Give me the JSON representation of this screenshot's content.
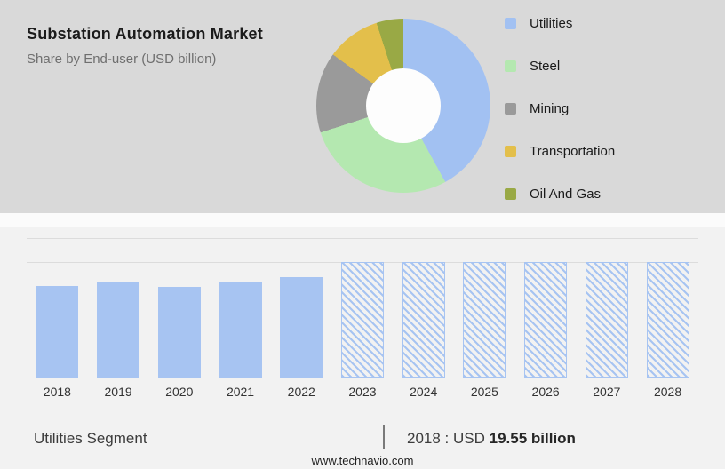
{
  "header": {
    "title": "Substation Automation Market",
    "subtitle": "Share by End-user (USD billion)"
  },
  "chart_data": [
    {
      "type": "pie",
      "title": "Substation Automation Market",
      "subtitle": "Share by End-user (USD billion)",
      "labels": [
        "Utilities",
        "Steel",
        "Mining",
        "Transportation",
        "Oil And Gas"
      ],
      "values_pct": [
        42,
        28,
        15,
        10,
        5
      ],
      "colors": [
        "#a2c1f2",
        "#b4e8b0",
        "#9a9a9a",
        "#e3bf4b",
        "#99a945"
      ],
      "donut_hole_ratio": 0.43,
      "legend_position": "right",
      "start_angle_deg": 0,
      "direction": "clockwise"
    },
    {
      "type": "bar",
      "categories": [
        "2018",
        "2019",
        "2020",
        "2021",
        "2022",
        "2023",
        "2024",
        "2025",
        "2026",
        "2027",
        "2028"
      ],
      "values_usd_billion": [
        19.55,
        20.5,
        19.4,
        20.3,
        21.4,
        null,
        null,
        null,
        null,
        null,
        null
      ],
      "bar_heights_rel": [
        0.79,
        0.83,
        0.785,
        0.82,
        0.87,
        1,
        1,
        1,
        1,
        1,
        1
      ],
      "forecast_from_index": 5,
      "forecast_style": "diagonal-hatch",
      "bar_color": "#a7c4f2",
      "xlabel": "",
      "ylabel": "",
      "grid": true,
      "legend_position": "none"
    }
  ],
  "caption": {
    "segment_label": "Utilities Segment",
    "divider": "|",
    "value_prefix": "2018 : USD",
    "value_bold": "19.55 billion"
  },
  "footer": {
    "website": "www.technavio.com"
  }
}
